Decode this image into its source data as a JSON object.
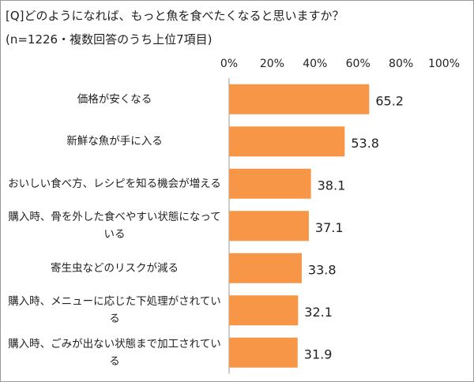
{
  "chart_data": {
    "type": "bar",
    "orientation": "horizontal",
    "title": "[Q]どのようになれば、もっと魚を食べたくなると思いますか？",
    "subtitle": "(n=1226・複数回答のうち上位7項目)",
    "categories": [
      "価格が安くなる",
      "新鮮な魚が手に入る",
      "おいしい食べ方、レシピを知る機会が増える",
      "購入時、骨を外した食べやすい状態になっている",
      "寄生虫などのリスクが減る",
      "購入時、メニューに応じた下処理がされている",
      "購入時、ごみが出ない状態まで加工されている"
    ],
    "values": [
      65.2,
      53.8,
      38.1,
      37.1,
      33.8,
      32.1,
      31.9
    ],
    "color": "#f79646",
    "xlim": [
      0,
      100
    ],
    "xticks": [
      {
        "value": 0,
        "label": "0%"
      },
      {
        "value": 20,
        "label": "20%"
      },
      {
        "value": 40,
        "label": "40%"
      },
      {
        "value": 60,
        "label": "60%"
      },
      {
        "value": 80,
        "label": "80%"
      },
      {
        "value": 100,
        "label": "100%"
      }
    ],
    "grid": false
  }
}
